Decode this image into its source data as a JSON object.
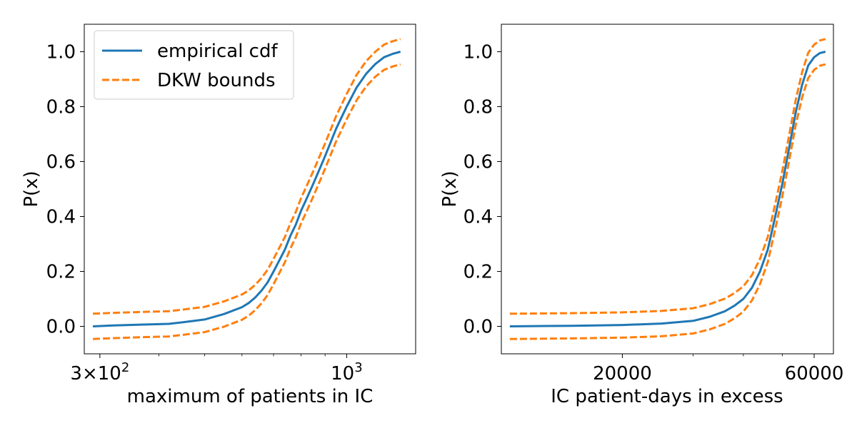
{
  "chart_data": [
    {
      "type": "line",
      "xlabel": "maximum of patients in IC",
      "ylabel": "P(x)",
      "xscale": "log",
      "xlim": [
        278,
        1400
      ],
      "ylim": [
        -0.1,
        1.1
      ],
      "x_ticks": [
        {
          "value": 300,
          "label": "3×10",
          "sup": "2"
        },
        {
          "value": 1000,
          "label": "10",
          "sup": "3"
        }
      ],
      "x_minor_ticks": [
        400,
        500,
        600,
        700,
        800,
        900
      ],
      "y_ticks": [
        "0.0",
        "0.2",
        "0.4",
        "0.6",
        "0.8",
        "1.0"
      ],
      "legend": {
        "position": "upper-left",
        "entries": [
          "empirical cdf",
          "DKW bounds"
        ]
      },
      "series": [
        {
          "name": "empirical cdf",
          "color": "#1f77b4",
          "style": "solid",
          "x": [
            290,
            320,
            360,
            420,
            450,
            500,
            550,
            600,
            620,
            640,
            660,
            680,
            700,
            720,
            740,
            760,
            780,
            800,
            820,
            850,
            880,
            900,
            950,
            1000,
            1050,
            1100,
            1150,
            1200,
            1250,
            1300
          ],
          "y": [
            0.0,
            0.003,
            0.006,
            0.009,
            0.015,
            0.025,
            0.045,
            0.07,
            0.085,
            0.105,
            0.13,
            0.16,
            0.2,
            0.24,
            0.28,
            0.33,
            0.37,
            0.42,
            0.46,
            0.52,
            0.58,
            0.62,
            0.72,
            0.8,
            0.87,
            0.92,
            0.955,
            0.98,
            0.992,
            1.0
          ]
        },
        {
          "name": "DKW bounds",
          "color": "#ff7f0e",
          "style": "dashed",
          "x": [
            290,
            320,
            360,
            420,
            450,
            500,
            550,
            600,
            620,
            640,
            660,
            680,
            700,
            720,
            740,
            760,
            780,
            800,
            820,
            850,
            880,
            900,
            950,
            1000,
            1050,
            1100,
            1150,
            1200,
            1250,
            1300
          ],
          "y": [
            0.046,
            0.049,
            0.052,
            0.055,
            0.061,
            0.071,
            0.091,
            0.116,
            0.131,
            0.151,
            0.176,
            0.206,
            0.246,
            0.286,
            0.326,
            0.376,
            0.416,
            0.466,
            0.506,
            0.566,
            0.626,
            0.666,
            0.766,
            0.846,
            0.916,
            0.966,
            1.0,
            1.026,
            1.038,
            1.046
          ]
        },
        {
          "name": "",
          "color": "#ff7f0e",
          "style": "dashed",
          "x": [
            290,
            320,
            360,
            420,
            450,
            500,
            550,
            600,
            620,
            640,
            660,
            680,
            700,
            720,
            740,
            760,
            780,
            800,
            820,
            850,
            880,
            900,
            950,
            1000,
            1050,
            1100,
            1150,
            1200,
            1250,
            1300
          ],
          "y": [
            -0.046,
            -0.043,
            -0.04,
            -0.037,
            -0.031,
            -0.021,
            -0.001,
            0.024,
            0.039,
            0.059,
            0.084,
            0.114,
            0.154,
            0.194,
            0.234,
            0.284,
            0.324,
            0.374,
            0.414,
            0.474,
            0.534,
            0.574,
            0.674,
            0.754,
            0.824,
            0.874,
            0.909,
            0.934,
            0.946,
            0.954
          ]
        }
      ]
    },
    {
      "type": "line",
      "xlabel": "IC patient-days in excess",
      "ylabel": "P(x)",
      "xscale": "log",
      "xlim": [
        10000,
        67000
      ],
      "ylim": [
        -0.1,
        1.1
      ],
      "x_ticks": [
        {
          "value": 20000,
          "label": "20000",
          "sup": ""
        },
        {
          "value": 60000,
          "label": "60000",
          "sup": ""
        }
      ],
      "x_minor_ticks": [
        30000,
        40000,
        50000
      ],
      "y_ticks": [
        "0.0",
        "0.2",
        "0.4",
        "0.6",
        "0.8",
        "1.0"
      ],
      "series": [
        {
          "name": "empirical cdf",
          "color": "#1f77b4",
          "style": "solid",
          "x": [
            10500,
            15000,
            20000,
            25000,
            30000,
            33000,
            36000,
            38000,
            40000,
            42000,
            44000,
            46000,
            48000,
            50000,
            52000,
            54000,
            56000,
            58000,
            60000,
            62000,
            64000
          ],
          "y": [
            0.0,
            0.002,
            0.005,
            0.01,
            0.02,
            0.035,
            0.055,
            0.075,
            0.1,
            0.14,
            0.2,
            0.28,
            0.4,
            0.52,
            0.65,
            0.78,
            0.88,
            0.95,
            0.98,
            0.995,
            1.0
          ]
        },
        {
          "name": "DKW bounds",
          "color": "#ff7f0e",
          "style": "dashed",
          "x": [
            10500,
            15000,
            20000,
            25000,
            30000,
            33000,
            36000,
            38000,
            40000,
            42000,
            44000,
            46000,
            48000,
            50000,
            52000,
            54000,
            56000,
            58000,
            60000,
            62000,
            64000
          ],
          "y": [
            0.046,
            0.048,
            0.051,
            0.056,
            0.066,
            0.081,
            0.101,
            0.121,
            0.146,
            0.186,
            0.246,
            0.326,
            0.446,
            0.566,
            0.696,
            0.826,
            0.926,
            0.996,
            1.026,
            1.041,
            1.046
          ]
        },
        {
          "name": "",
          "color": "#ff7f0e",
          "style": "dashed",
          "x": [
            10500,
            15000,
            20000,
            25000,
            30000,
            33000,
            36000,
            38000,
            40000,
            42000,
            44000,
            46000,
            48000,
            50000,
            52000,
            54000,
            56000,
            58000,
            60000,
            62000,
            64000
          ],
          "y": [
            -0.046,
            -0.044,
            -0.041,
            -0.036,
            -0.026,
            -0.011,
            0.009,
            0.029,
            0.054,
            0.094,
            0.154,
            0.234,
            0.354,
            0.474,
            0.604,
            0.734,
            0.834,
            0.904,
            0.934,
            0.949,
            0.954
          ]
        }
      ]
    }
  ]
}
